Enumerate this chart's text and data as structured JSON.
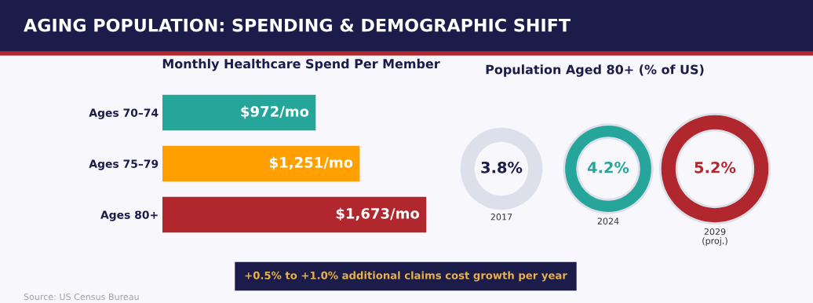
{
  "chart_data": [
    {
      "type": "bar",
      "orientation": "horizontal",
      "title": "AGING POPULATION: SPENDING & DEMOGRAPHIC SHIFT",
      "subtitle": "Monthly Healthcare Spend Per Member",
      "categories": [
        "Ages 70–74",
        "Ages 75–79",
        "Ages 80+"
      ],
      "values": [
        972,
        1251,
        1673
      ],
      "colors": [
        "#26a69a",
        "#ffa000",
        "#b0282e"
      ],
      "value_labels": [
        "$972/mo",
        "$1,251/mo",
        "$1,673/mo"
      ],
      "tick_labels": "y",
      "annotations": [
        "+0.5% to +1.0% additional claims cost growth per year",
        "Source: US Census Bureau"
      ]
    },
    {
      "type": "other",
      "title": "Population Aged 80+ (% of US)",
      "categories": [
        "2017",
        "2024",
        "2029\n(proj.)"
      ],
      "values": [
        3.8,
        4.2,
        5.2
      ],
      "colors": [
        "#dde0ea",
        "#26a69a",
        "#b0282e"
      ],
      "value_labels": [
        "3.8%",
        "4.2%",
        "5.2%"
      ]
    }
  ]
}
